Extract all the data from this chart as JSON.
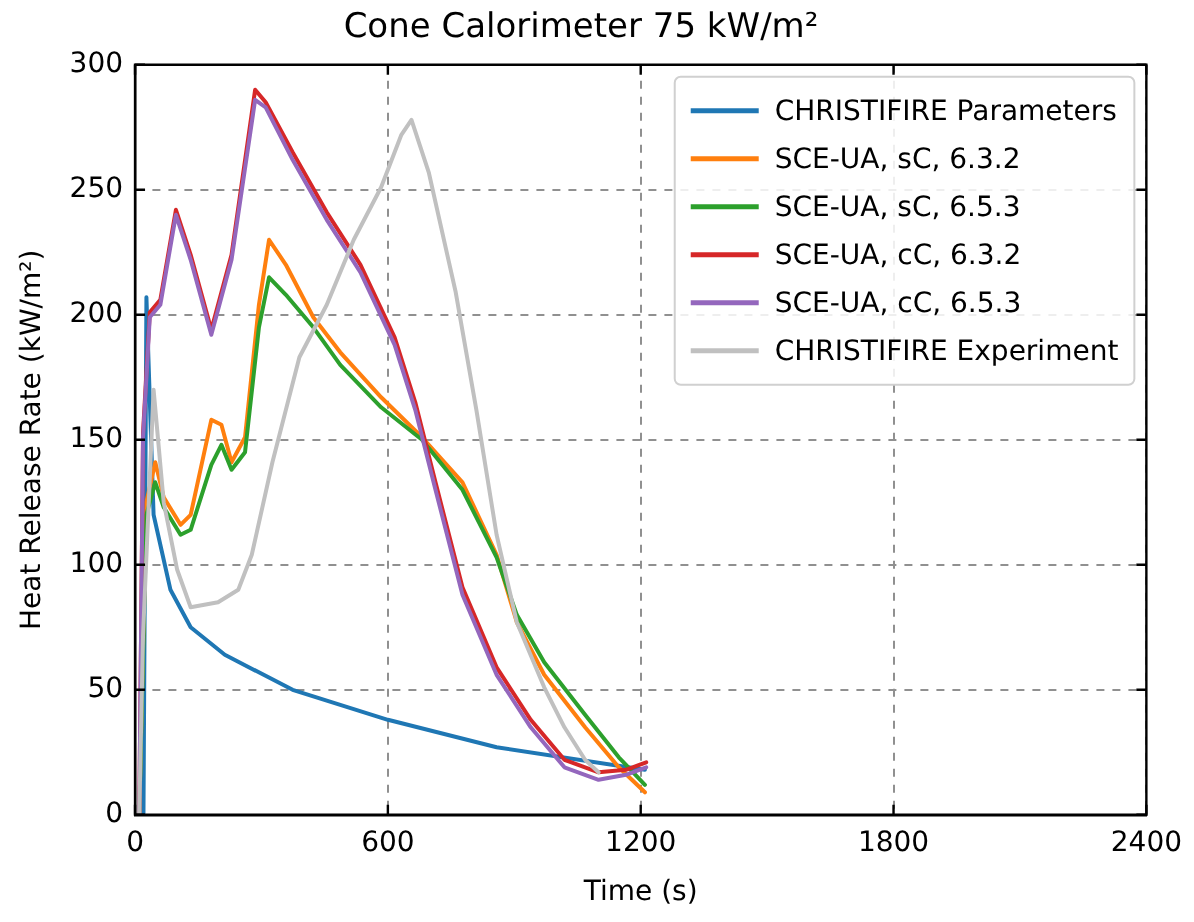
{
  "chart_data": {
    "type": "line",
    "title": "Cone Calorimeter 75 kW/m²",
    "xlabel": "Time (s)",
    "ylabel": "Heat Release Rate (kW/m²)",
    "xlim": [
      0,
      2400
    ],
    "xticks": [
      0,
      600,
      1200,
      1800,
      2400
    ],
    "ylim": [
      0,
      300
    ],
    "yticks": [
      0,
      50,
      100,
      150,
      200,
      250,
      300
    ],
    "grid": true,
    "legend": "top right",
    "marker": "none",
    "line_style": "solid",
    "series": [
      {
        "name": "CHRISTIFIRE Parameters",
        "color": "#1f77b4",
        "x": [
          20,
          27,
          44,
          84,
          132,
          213,
          374,
          600,
          858,
          1210
        ],
        "values": [
          0,
          207,
          120,
          90,
          75,
          64,
          50,
          38,
          27,
          18
        ]
      },
      {
        "name": "SCE-UA, sC, 6.3.2",
        "color": "#ff7f0e",
        "x": [
          10,
          27,
          48,
          68,
          108,
          132,
          181,
          205,
          229,
          261,
          294,
          318,
          358,
          423,
          487,
          584,
          681,
          777,
          858,
          906,
          971,
          1068,
          1148,
          1210
        ],
        "values": [
          0,
          125,
          141,
          127,
          116,
          120,
          158,
          156,
          141,
          151,
          204,
          230,
          220,
          199,
          185,
          167,
          151,
          133,
          104,
          77,
          56,
          35,
          19,
          9
        ]
      },
      {
        "name": "SCE-UA, sC, 6.5.3",
        "color": "#2ca02c",
        "x": [
          10,
          27,
          48,
          68,
          108,
          132,
          181,
          205,
          229,
          261,
          294,
          318,
          358,
          423,
          487,
          584,
          681,
          777,
          858,
          906,
          971,
          1068,
          1148,
          1210
        ],
        "values": [
          0,
          120,
          133,
          123,
          112,
          114,
          140,
          148,
          138,
          145,
          195,
          215,
          208,
          195,
          180,
          163,
          150,
          130,
          103,
          80,
          61,
          40,
          23,
          12
        ]
      },
      {
        "name": "SCE-UA, cC, 6.3.2",
        "color": "#d62728",
        "x": [
          10,
          19,
          35,
          60,
          97,
          132,
          181,
          229,
          285,
          310,
          374,
          455,
          535,
          616,
          665,
          713,
          777,
          858,
          939,
          1019,
          1100,
          1165,
          1213
        ],
        "values": [
          0,
          153,
          201,
          206,
          242,
          224,
          194,
          224,
          290,
          285,
          265,
          241,
          220,
          191,
          165,
          133,
          91,
          59,
          38,
          22,
          17,
          18,
          21
        ]
      },
      {
        "name": "SCE-UA, cC, 6.5.3",
        "color": "#9467bd",
        "x": [
          10,
          19,
          35,
          60,
          97,
          132,
          181,
          229,
          285,
          310,
          374,
          455,
          535,
          616,
          665,
          713,
          777,
          858,
          939,
          1019,
          1100,
          1165,
          1213
        ],
        "values": [
          0,
          151,
          199,
          204,
          240,
          222,
          192,
          222,
          286,
          283,
          262,
          238,
          217,
          188,
          162,
          130,
          88,
          56,
          35,
          19,
          14,
          16,
          19
        ]
      },
      {
        "name": "CHRISTIFIRE Experiment",
        "color": "#c0c0c0",
        "x": [
          10,
          19,
          44,
          68,
          100,
          132,
          197,
          245,
          277,
          326,
          390,
          455,
          519,
          584,
          632,
          656,
          697,
          761,
          810,
          858,
          906,
          971,
          1019,
          1068,
          1100
        ],
        "values": [
          0,
          72,
          170,
          125,
          98,
          83,
          85,
          90,
          104,
          141,
          183,
          204,
          230,
          251,
          272,
          278,
          257,
          209,
          162,
          112,
          77,
          51,
          35,
          22,
          17
        ]
      }
    ]
  }
}
